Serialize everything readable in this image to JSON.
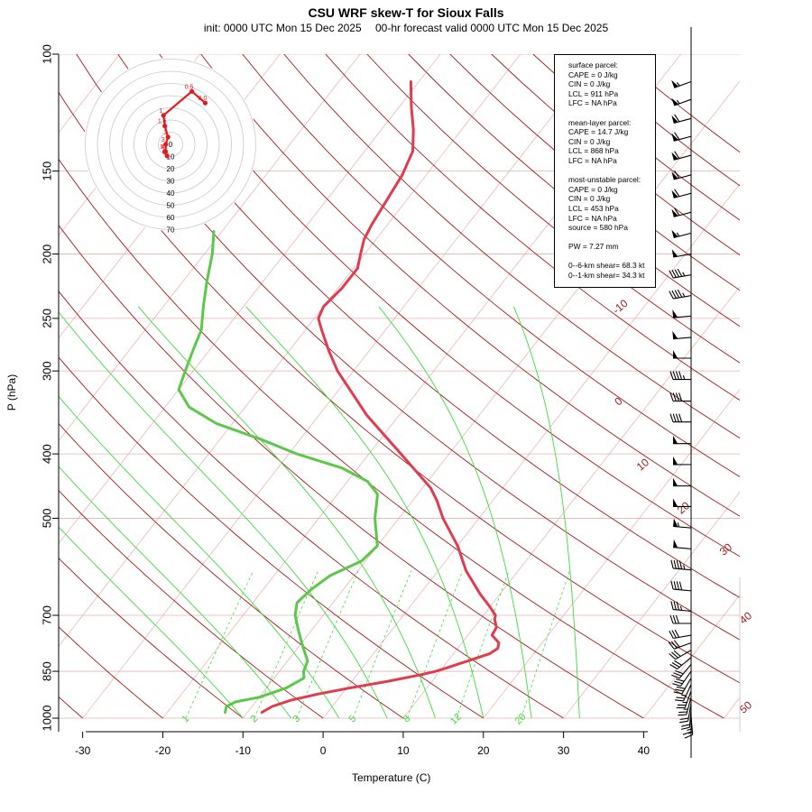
{
  "title": "CSU WRF skew-T for Sioux Falls",
  "subtitle": {
    "init": "init: 0000 UTC Mon 15 Dec 2025",
    "valid": "00-hr forecast valid 0000 UTC Mon 15 Dec 2025"
  },
  "params": {
    "surface": {
      "header": "surface parcel:",
      "cape": "CAPE = 0 J/kg",
      "cin": "CIN = 0 J/kg",
      "lcl": "LCL = 911 hPa",
      "lfc": "LFC = NA hPa"
    },
    "mean_layer": {
      "header": "mean-layer parcel:",
      "cape": "CAPE = 14.7 J/kg",
      "cin": "CIN = 0 J/kg",
      "lcl": "LCL = 868 hPa",
      "lfc": "LFC = NA hPa"
    },
    "most_unstable": {
      "header": "most-unstable parcel:",
      "cape": "CAPE = 0 J/kg",
      "cin": "CIN = 0 J/kg",
      "lcl": "LCL = 453 hPa",
      "lfc": "LFC = NA hPa",
      "source": "source = 580 hPa"
    },
    "pw": "PW =  7.27 mm",
    "shear_0_6": "0--6-km shear= 68.3 kt",
    "shear_0_1": "0--1-km shear= 34.3 kt"
  },
  "colors": {
    "temperature": "#e03c4e",
    "dewpoint": "#5cc84a",
    "isotherm": "#e6a0a0",
    "dry_adiabat": "#a11a1a",
    "moist_adiabat": "#3ddc3d",
    "mixing_ratio": "#3ddc3d",
    "hodograph": "#e31a1c",
    "isobar": "#e6b0b0",
    "wind_barb": "#000000"
  },
  "chart_data": {
    "type": "line",
    "xlabel": "Temperature (C)",
    "ylabel": "P (hPa)",
    "xlim": [
      -33,
      52
    ],
    "ylim": [
      1000,
      100
    ],
    "y_scale": "log",
    "x_ticks": [
      -30,
      -20,
      -10,
      0,
      10,
      20,
      30,
      40
    ],
    "y_ticks": [
      100,
      150,
      200,
      250,
      300,
      400,
      500,
      700,
      850,
      1000
    ],
    "isotherm_labels": [
      "-10",
      "0",
      "10",
      "20",
      "30",
      "40",
      "50"
    ],
    "mixing_ratio_labels": [
      "1",
      "2",
      "3",
      "5",
      "8",
      "12",
      "20"
    ],
    "series": [
      {
        "key": "temperature",
        "pressure": [
          980,
          960,
          940,
          920,
          900,
          880,
          860,
          850,
          840,
          830,
          820,
          810,
          800,
          785,
          770,
          750,
          730,
          710,
          700,
          680,
          650,
          600,
          550,
          500,
          470,
          450,
          400,
          350,
          300,
          280,
          260,
          250,
          240,
          225,
          210,
          200,
          190,
          180,
          165,
          152,
          140,
          130,
          120,
          110
        ],
        "values": [
          -8.2,
          -7.5,
          -5.8,
          -3.0,
          0.5,
          4.5,
          8.0,
          9.5,
          10.5,
          11.5,
          12.5,
          13.5,
          14.5,
          15.0,
          14.6,
          13.0,
          12.8,
          11.8,
          11.5,
          10.0,
          7.5,
          3.5,
          0.0,
          -4.5,
          -7.0,
          -9.0,
          -16.0,
          -24.0,
          -32.0,
          -35.0,
          -38.0,
          -39.5,
          -40.0,
          -39.5,
          -39.5,
          -40.5,
          -41.5,
          -42.0,
          -42.5,
          -43.0,
          -44.0,
          -46.0,
          -48.5,
          -51.0
        ]
      },
      {
        "key": "dewpoint",
        "pressure": [
          980,
          960,
          945,
          930,
          900,
          870,
          850,
          820,
          780,
          740,
          700,
          670,
          640,
          610,
          580,
          550,
          500,
          460,
          440,
          420,
          400,
          380,
          360,
          340,
          320,
          300,
          280,
          260,
          240,
          220,
          200,
          185
        ],
        "values": [
          -12.8,
          -13.2,
          -12.5,
          -10.0,
          -7.5,
          -6.3,
          -7.0,
          -7.5,
          -9.5,
          -11.5,
          -13.5,
          -14.5,
          -14.0,
          -13.0,
          -10.5,
          -10.0,
          -13.0,
          -15.0,
          -17.5,
          -22.0,
          -29.0,
          -35.0,
          -42.0,
          -47.0,
          -50.0,
          -51.0,
          -52.0,
          -53.0,
          -55.0,
          -57.0,
          -59.0,
          -61.0
        ]
      }
    ],
    "wind_barbs_right_axis": {
      "pressure": [
        110,
        117,
        125,
        133,
        142,
        152,
        162,
        173,
        186,
        200,
        215,
        231,
        248,
        267,
        287,
        309,
        333,
        358,
        386,
        415,
        447,
        480,
        517,
        556,
        598,
        643,
        690,
        720,
        750,
        770,
        790,
        810,
        830,
        850,
        870,
        890,
        910,
        930,
        950,
        970,
        985,
        995
      ],
      "speed_kt": [
        55,
        55,
        60,
        60,
        60,
        60,
        60,
        60,
        55,
        50,
        45,
        45,
        50,
        50,
        50,
        45,
        40,
        40,
        50,
        50,
        50,
        50,
        55,
        50,
        45,
        40,
        35,
        30,
        30,
        30,
        30,
        30,
        30,
        30,
        30,
        25,
        25,
        25,
        20,
        20,
        15,
        15
      ],
      "direction_deg": [
        250,
        250,
        255,
        255,
        255,
        255,
        255,
        255,
        255,
        260,
        260,
        260,
        265,
        265,
        270,
        270,
        270,
        270,
        270,
        270,
        270,
        270,
        275,
        275,
        275,
        275,
        275,
        270,
        260,
        250,
        240,
        230,
        220,
        215,
        210,
        205,
        200,
        195,
        190,
        185,
        180,
        175
      ]
    },
    "hodograph": {
      "rings_kt": [
        10,
        20,
        30,
        40,
        50,
        60,
        70
      ],
      "ring_labels": [
        "0",
        "10",
        "20",
        "30",
        "40",
        "50",
        "60",
        "70"
      ],
      "point_labels": [
        "0.5",
        "0.0",
        "1",
        "1.5",
        "3",
        "3",
        "4",
        "5",
        "6"
      ],
      "u_kt": [
        17.5,
        28.5,
        -5.8,
        -4.7,
        -2.1,
        -3.9,
        -4.0,
        -4.8,
        -2.8
      ],
      "v_kt": [
        43.5,
        34.0,
        23.8,
        15.1,
        6.0,
        0.0,
        -6.1,
        -6.1,
        -9.5
      ]
    }
  }
}
